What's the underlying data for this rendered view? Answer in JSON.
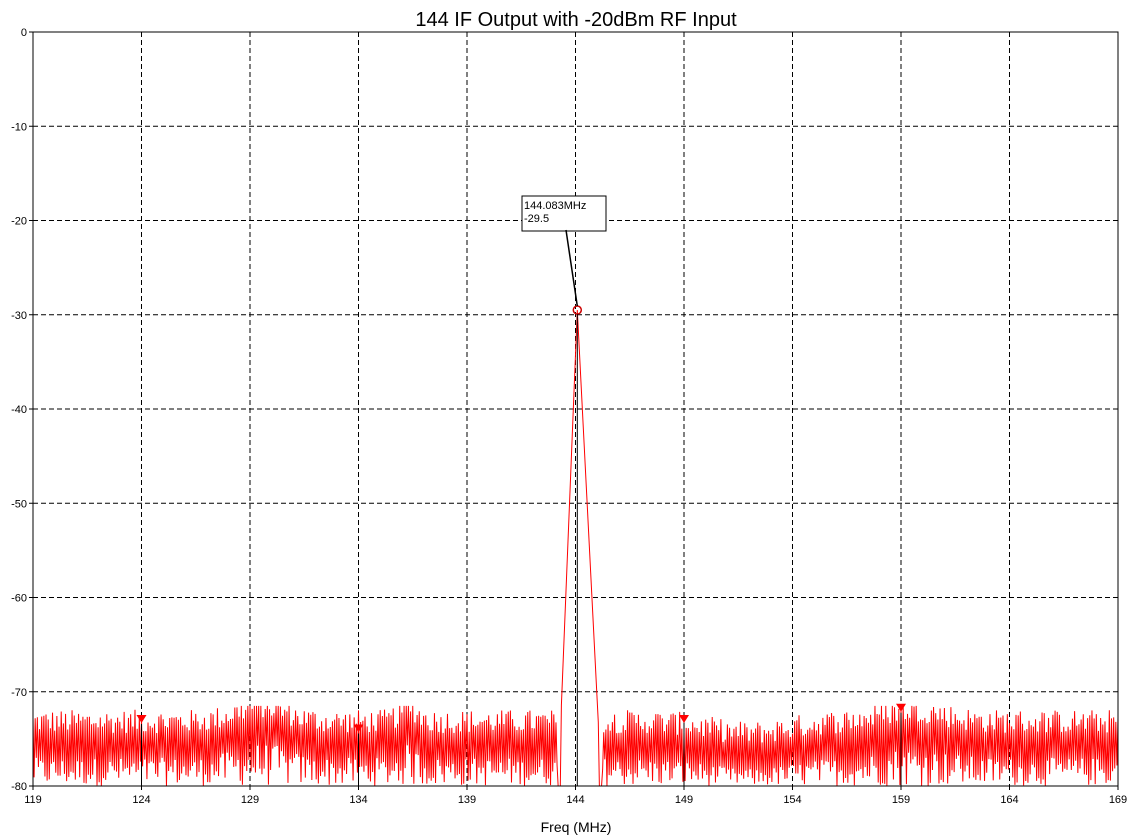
{
  "chart_data": {
    "type": "line",
    "title": "144 IF Output with -20dBm RF Input",
    "xlabel": "Freq (MHz)",
    "ylabel": "",
    "xlim": [
      119,
      169
    ],
    "ylim": [
      -80,
      0
    ],
    "x_ticks": [
      "119",
      "124",
      "129",
      "134",
      "139",
      "144",
      "149",
      "154",
      "159",
      "164",
      "169"
    ],
    "y_ticks": [
      "0",
      "-10",
      "-20",
      "-30",
      "-40",
      "-50",
      "-60",
      "-70",
      "-80"
    ],
    "grid": true,
    "series": [
      {
        "color": "#ff0000",
        "noise_floor_center": -76,
        "noise_floor_range": [
          -80,
          -71.5
        ],
        "peak": {
          "x": 144.083,
          "y": -29.5
        },
        "peak_base": [
          143.2,
          145.2
        ]
      }
    ],
    "markers": [
      {
        "x": 124,
        "y": -73
      },
      {
        "x": 134,
        "y": -74
      },
      {
        "x": 144.083,
        "y": -29.5
      },
      {
        "x": 149,
        "y": -73
      },
      {
        "x": 159,
        "y": -71.8
      }
    ],
    "annotation": {
      "line1": "144.083MHz",
      "line2": "-29.5",
      "x": 144.083,
      "y": -29.5
    }
  }
}
